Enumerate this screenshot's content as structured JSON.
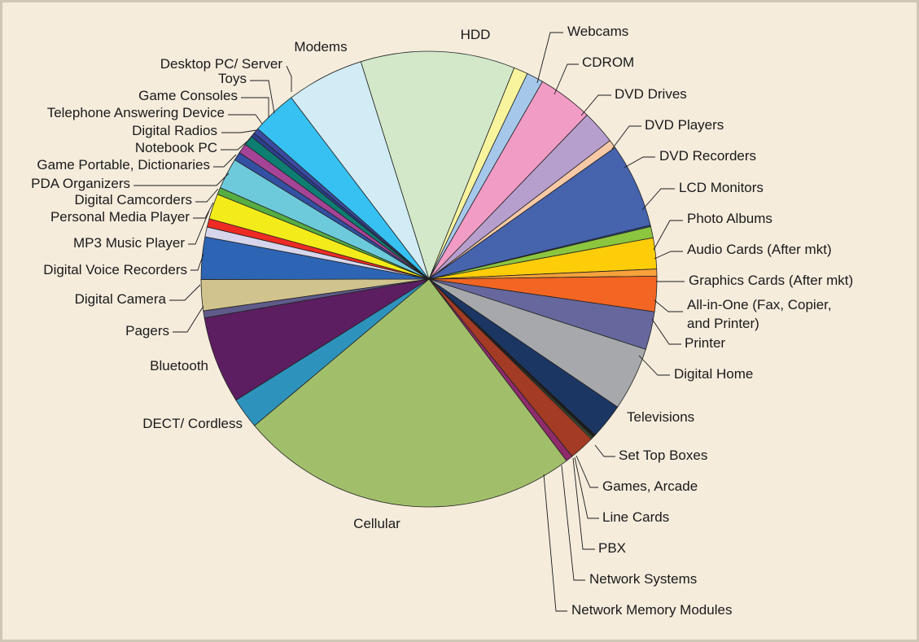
{
  "chart_data": {
    "type": "pie",
    "title": "",
    "unit": "percent",
    "slices": [
      {
        "label": "HDD",
        "value": 10.94,
        "color": "#d3e8c9"
      },
      {
        "label": "Webcams",
        "value": 1.0,
        "color": "#f8f49e"
      },
      {
        "label": "CDROM",
        "value": 1.2,
        "color": "#a5c8ea"
      },
      {
        "label": "DVD Drives",
        "value": 3.9,
        "color": "#f19cc5"
      },
      {
        "label": "DVD Players",
        "value": 2.4,
        "color": "#b79fcd"
      },
      {
        "label": "DVD Recorders",
        "value": 0.6,
        "color": "#f7c9a6"
      },
      {
        "label": "LCD Monitors",
        "value": 6.0,
        "color": "#4663ae"
      },
      {
        "label": "Photo Albums",
        "value": 0.1,
        "color": "#2a4f92"
      },
      {
        "label": "Audio Cards (After mkt)",
        "value": 0.8,
        "color": "#8cc53e"
      },
      {
        "label": "Graphics Cards (After mkt)",
        "value": 2.2,
        "color": "#fecd0a"
      },
      {
        "label": "All-in-One (Fax, Copier, and Printer)",
        "value": 0.5,
        "color": "#f7a23a"
      },
      {
        "label": "Printer",
        "value": 2.5,
        "color": "#f26522"
      },
      {
        "label": "Digital Home",
        "value": 2.7,
        "color": "#66679c"
      },
      {
        "label": "Televisions",
        "value": 4.5,
        "color": "#a6a8ab"
      },
      {
        "label": "Set Top Boxes",
        "value": 2.5,
        "color": "#1c3664"
      },
      {
        "label": "Games, Arcade",
        "value": 0.2,
        "color": "#1a1a1a"
      },
      {
        "label": "Line Cards",
        "value": 0.1,
        "color": "#3a4f3a"
      },
      {
        "label": "PBX",
        "value": 0.1,
        "color": "#5a6b2f"
      },
      {
        "label": "Network Systems",
        "value": 1.8,
        "color": "#a43b24"
      },
      {
        "label": "Network Memory Modules",
        "value": 0.5,
        "color": "#8e2b6b"
      },
      {
        "label": "Cellular",
        "value": 24.2,
        "color": "#a1bf6a"
      },
      {
        "label": "DECT/ Cordless",
        "value": 2.2,
        "color": "#2e93bc"
      },
      {
        "label": "Bluetooth",
        "value": 6.2,
        "color": "#5c1e61"
      },
      {
        "label": "Pagers",
        "value": 0.5,
        "color": "#5e5b8a"
      },
      {
        "label": "Digital Camera",
        "value": 2.2,
        "color": "#d1c38e"
      },
      {
        "label": "Digital Voice Recorders",
        "value": 3.0,
        "color": "#2d64b3"
      },
      {
        "label": "MP3 Music Player",
        "value": 0.7,
        "color": "#d7d5eb"
      },
      {
        "label": "Personal Media Player",
        "value": 0.6,
        "color": "#ee2a24"
      },
      {
        "label": "Digital Camcorders",
        "value": 1.8,
        "color": "#f4ec1a"
      },
      {
        "label": "PDA Organizers",
        "value": 0.5,
        "color": "#56ad42"
      },
      {
        "label": "Game Portable, Dictionaries",
        "value": 2.2,
        "color": "#6dcadb"
      },
      {
        "label": "Notebook PC",
        "value": 0.6,
        "color": "#3350a3"
      },
      {
        "label": "Digital Radios",
        "value": 0.7,
        "color": "#a54497"
      },
      {
        "label": "Telephone Answering Device",
        "value": 0.7,
        "color": "#0e7e73"
      },
      {
        "label": "Game Consoles",
        "value": 0.3,
        "color": "#2d3e8f"
      },
      {
        "label": "Toys",
        "value": 0.4,
        "color": "#3b4aa0"
      },
      {
        "label": "Desktop PC/ Server",
        "value": 3.2,
        "color": "#36c1f2"
      },
      {
        "label": "Modems",
        "value": 5.5,
        "color": "#d1ecf4"
      }
    ],
    "text_labels": [
      {
        "text": "HDD",
        "slice": 0
      },
      {
        "text": "Webcams",
        "slice": 1
      },
      {
        "text": "CDROM",
        "slice": 2
      },
      {
        "text": "DVD Drives",
        "slice": 3
      },
      {
        "text": "DVD Players",
        "slice": 4
      },
      {
        "text": "DVD Recorders",
        "slice": 5
      },
      {
        "text": "LCD Monitors",
        "slice": 6
      },
      {
        "text": "Photo Albums",
        "slice": 7
      },
      {
        "text": "Audio Cards (After mkt)",
        "slice": 8
      },
      {
        "text": "Graphics Cards (After mkt)",
        "slice": 9
      },
      {
        "text": "All-in-One (Fax, Copier,",
        "slice": 10
      },
      {
        "text": "and Printer)",
        "slice": 10
      },
      {
        "text": "Printer",
        "slice": 11
      },
      {
        "text": "Digital Home",
        "slice": 12
      },
      {
        "text": "Televisions",
        "slice": 13
      },
      {
        "text": "Set Top Boxes",
        "slice": 14
      },
      {
        "text": "Games, Arcade",
        "slice": 15
      },
      {
        "text": "Line Cards",
        "slice": 16
      },
      {
        "text": "PBX",
        "slice": 17
      },
      {
        "text": "Network Systems",
        "slice": 18
      },
      {
        "text": "Network Memory Modules",
        "slice": 19
      },
      {
        "text": "Cellular",
        "slice": 20
      },
      {
        "text": "DECT/ Cordless",
        "slice": 21
      },
      {
        "text": "Bluetooth",
        "slice": 22
      },
      {
        "text": "Pagers",
        "slice": 23
      },
      {
        "text": "Digital Camera",
        "slice": 24
      },
      {
        "text": "Digital Voice Recorders",
        "slice": 25
      },
      {
        "text": "MP3 Music Player",
        "slice": 26
      },
      {
        "text": "Personal Media Player",
        "slice": 27
      },
      {
        "text": "Digital Camcorders",
        "slice": 28
      },
      {
        "text": "PDA Organizers",
        "slice": 29
      },
      {
        "text": "Game Portable, Dictionaries",
        "slice": 30
      },
      {
        "text": "Notebook PC",
        "slice": 31
      },
      {
        "text": "Digital Radios",
        "slice": 32
      },
      {
        "text": "Telephone Answering Device",
        "slice": 33
      },
      {
        "text": "Game Consoles",
        "slice": 34
      },
      {
        "text": "Toys",
        "slice": 35
      },
      {
        "text": "Desktop PC/ Server",
        "slice": 36
      },
      {
        "text": "Modems",
        "slice": 37
      }
    ],
    "legend": "none",
    "grid": false
  }
}
